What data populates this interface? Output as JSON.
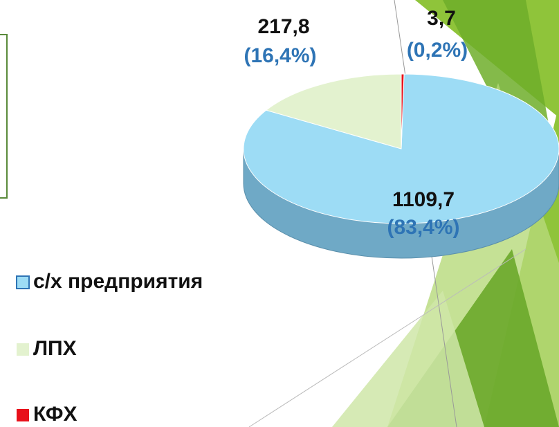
{
  "chart_data": {
    "type": "pie",
    "categories": [
      "с/х предприятия",
      "ЛПХ",
      "КФХ"
    ],
    "values": [
      1109.7,
      217.8,
      3.7
    ],
    "value_labels": [
      "1109,7",
      "217,8",
      "3,7"
    ],
    "percents": [
      83.4,
      16.4,
      0.2
    ],
    "percent_labels": [
      "(83,4%)",
      "(16,4%)",
      "(0,2%)"
    ],
    "colors": [
      "#9ddcf5",
      "#e3f2cf",
      "#e8101a"
    ],
    "legend": "bottom-left"
  }
}
